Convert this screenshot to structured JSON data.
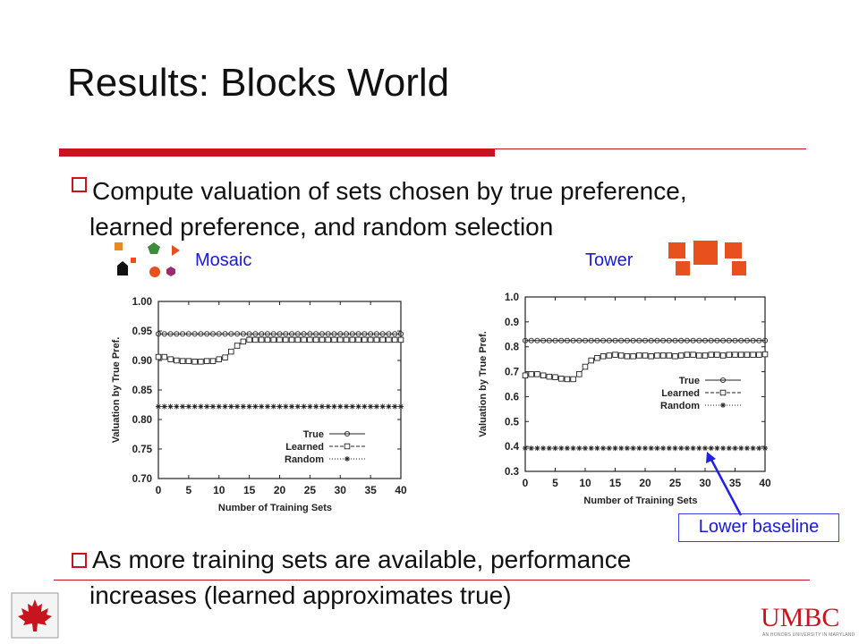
{
  "slide": {
    "title": "Results: Blocks World",
    "bullets": [
      {
        "line1": "Compute valuation of sets chosen by true preference,",
        "line2": "learned preference, and random selection"
      },
      {
        "line1": "As more training sets are available, performance",
        "line2": "increases (learned approximates true)"
      }
    ],
    "labels": {
      "mosaic": "Mosaic",
      "tower": "Tower"
    },
    "callout": "Lower baseline",
    "logo_text": "UMBC",
    "logo_subtext": "AN HONORS UNIVERSITY IN MARYLAND",
    "colors": {
      "accent": "#c8141e",
      "label_blue": "#1a1ad9",
      "block_orange": "#e8501e"
    },
    "icons": [
      "maple-leaf-icon",
      "mosaic-blocks-icon",
      "tower-blocks-icon"
    ]
  },
  "chart_data": [
    {
      "type": "line",
      "panel": "Mosaic",
      "xlabel": "Number of Training Sets",
      "ylabel": "Valuation by True Pref.",
      "xlim": [
        0,
        40
      ],
      "ylim": [
        0.7,
        1.0
      ],
      "xticks": [
        0,
        5,
        10,
        15,
        20,
        25,
        30,
        35,
        40
      ],
      "yticks": [
        0.7,
        0.75,
        0.8,
        0.85,
        0.9,
        0.95,
        1.0
      ],
      "ytick_labels": [
        "0.70",
        "0.75",
        "0.80",
        "0.85",
        "0.90",
        "0.95",
        "1.00"
      ],
      "x": [
        0,
        1,
        2,
        3,
        4,
        5,
        6,
        7,
        8,
        9,
        10,
        11,
        12,
        13,
        14,
        15,
        16,
        17,
        18,
        19,
        20,
        21,
        22,
        23,
        24,
        25,
        26,
        27,
        28,
        29,
        30,
        31,
        32,
        33,
        34,
        35,
        36,
        37,
        38,
        39,
        40
      ],
      "series": [
        {
          "name": "True",
          "marker": "circle",
          "dash": "solid",
          "values": [
            0.945,
            0.945,
            0.945,
            0.945,
            0.945,
            0.945,
            0.945,
            0.945,
            0.945,
            0.945,
            0.945,
            0.945,
            0.945,
            0.945,
            0.945,
            0.945,
            0.945,
            0.945,
            0.945,
            0.945,
            0.945,
            0.945,
            0.945,
            0.945,
            0.945,
            0.945,
            0.945,
            0.945,
            0.945,
            0.945,
            0.945,
            0.945,
            0.945,
            0.945,
            0.945,
            0.945,
            0.945,
            0.945,
            0.945,
            0.945,
            0.945
          ]
        },
        {
          "name": "Learned",
          "marker": "square",
          "dash": "dashed",
          "values": [
            0.906,
            0.906,
            0.902,
            0.9,
            0.899,
            0.899,
            0.898,
            0.898,
            0.899,
            0.899,
            0.902,
            0.905,
            0.915,
            0.925,
            0.932,
            0.935,
            0.935,
            0.935,
            0.935,
            0.935,
            0.935,
            0.935,
            0.935,
            0.935,
            0.935,
            0.935,
            0.935,
            0.935,
            0.935,
            0.935,
            0.935,
            0.935,
            0.935,
            0.935,
            0.935,
            0.935,
            0.935,
            0.935,
            0.935,
            0.935,
            0.935
          ]
        },
        {
          "name": "Random",
          "marker": "star",
          "dash": "dotted",
          "values": [
            0.822,
            0.822,
            0.822,
            0.822,
            0.822,
            0.822,
            0.822,
            0.822,
            0.822,
            0.822,
            0.822,
            0.822,
            0.822,
            0.822,
            0.822,
            0.822,
            0.822,
            0.822,
            0.822,
            0.822,
            0.822,
            0.822,
            0.822,
            0.822,
            0.822,
            0.822,
            0.822,
            0.822,
            0.822,
            0.822,
            0.822,
            0.822,
            0.822,
            0.822,
            0.822,
            0.822,
            0.822,
            0.822,
            0.822,
            0.822,
            0.822
          ]
        }
      ],
      "legend": "bottom-right",
      "grid": false
    },
    {
      "type": "line",
      "panel": "Tower",
      "xlabel": "Number of Training Sets",
      "ylabel": "Valuation by True Pref.",
      "xlim": [
        0,
        40
      ],
      "ylim": [
        0.3,
        1.0
      ],
      "xticks": [
        0,
        5,
        10,
        15,
        20,
        25,
        30,
        35,
        40
      ],
      "yticks": [
        0.3,
        0.4,
        0.5,
        0.6,
        0.7,
        0.8,
        0.9,
        1.0
      ],
      "ytick_labels": [
        "0.3",
        "0.4",
        "0.5",
        "0.6",
        "0.7",
        "0.8",
        "0.9",
        "1.0"
      ],
      "x": [
        0,
        1,
        2,
        3,
        4,
        5,
        6,
        7,
        8,
        9,
        10,
        11,
        12,
        13,
        14,
        15,
        16,
        17,
        18,
        19,
        20,
        21,
        22,
        23,
        24,
        25,
        26,
        27,
        28,
        29,
        30,
        31,
        32,
        33,
        34,
        35,
        36,
        37,
        38,
        39,
        40
      ],
      "series": [
        {
          "name": "True",
          "marker": "circle",
          "dash": "solid",
          "values": [
            0.825,
            0.825,
            0.825,
            0.825,
            0.825,
            0.825,
            0.825,
            0.825,
            0.825,
            0.825,
            0.825,
            0.825,
            0.825,
            0.825,
            0.825,
            0.825,
            0.825,
            0.825,
            0.825,
            0.825,
            0.825,
            0.825,
            0.825,
            0.825,
            0.825,
            0.825,
            0.825,
            0.825,
            0.825,
            0.825,
            0.825,
            0.825,
            0.825,
            0.825,
            0.825,
            0.825,
            0.825,
            0.825,
            0.825,
            0.825,
            0.825
          ]
        },
        {
          "name": "Learned",
          "marker": "square",
          "dash": "dashed",
          "values": [
            0.685,
            0.69,
            0.69,
            0.685,
            0.68,
            0.678,
            0.672,
            0.67,
            0.67,
            0.69,
            0.72,
            0.745,
            0.755,
            0.762,
            0.765,
            0.768,
            0.765,
            0.762,
            0.762,
            0.765,
            0.765,
            0.762,
            0.765,
            0.765,
            0.765,
            0.762,
            0.765,
            0.768,
            0.768,
            0.765,
            0.765,
            0.768,
            0.768,
            0.765,
            0.768,
            0.768,
            0.768,
            0.768,
            0.768,
            0.768,
            0.77
          ]
        },
        {
          "name": "Random",
          "marker": "star",
          "dash": "dotted",
          "values": [
            0.393,
            0.393,
            0.393,
            0.393,
            0.393,
            0.393,
            0.393,
            0.393,
            0.393,
            0.393,
            0.393,
            0.393,
            0.393,
            0.393,
            0.393,
            0.393,
            0.393,
            0.393,
            0.393,
            0.393,
            0.393,
            0.393,
            0.393,
            0.393,
            0.393,
            0.393,
            0.393,
            0.393,
            0.393,
            0.393,
            0.393,
            0.393,
            0.393,
            0.393,
            0.393,
            0.393,
            0.393,
            0.393,
            0.393,
            0.393,
            0.393
          ]
        }
      ],
      "legend": "right",
      "grid": false
    }
  ]
}
